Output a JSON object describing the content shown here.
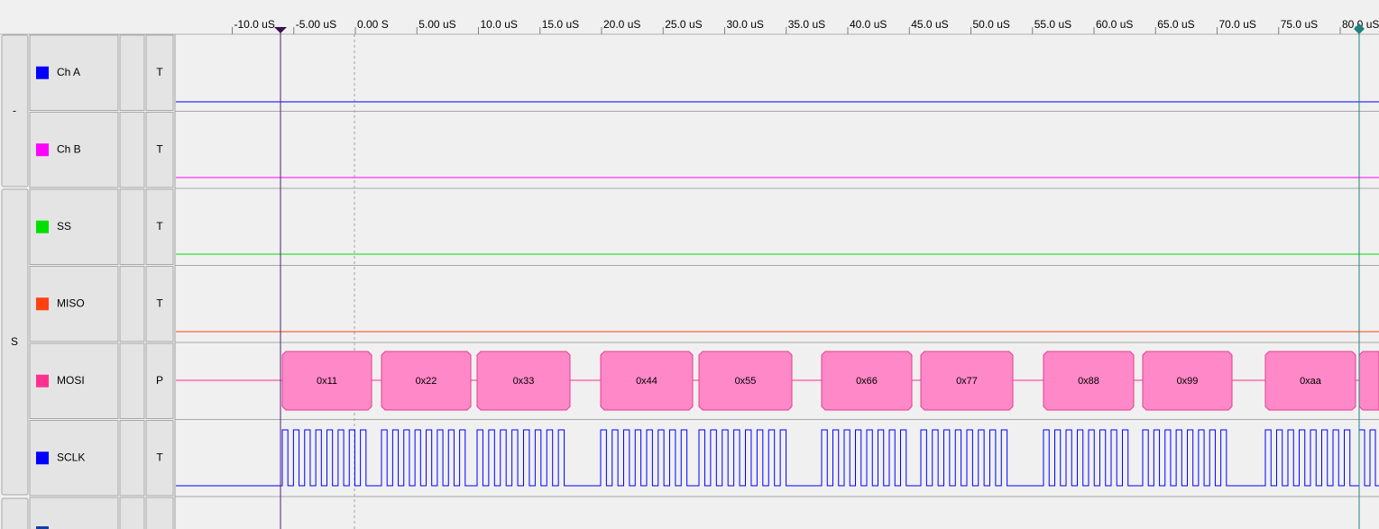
{
  "time_ruler": {
    "ticks": [
      {
        "value": -10,
        "label": "-10.0 uS"
      },
      {
        "value": -5,
        "label": "-5.00 uS"
      },
      {
        "value": 0,
        "label": "0.00  S"
      },
      {
        "value": 5,
        "label": "5.00 uS"
      },
      {
        "value": 10,
        "label": "10.0 uS"
      },
      {
        "value": 15,
        "label": "15.0 uS"
      },
      {
        "value": 20,
        "label": "20.0 uS"
      },
      {
        "value": 25,
        "label": "25.0 uS"
      },
      {
        "value": 30,
        "label": "30.0 uS"
      },
      {
        "value": 35,
        "label": "35.0 uS"
      },
      {
        "value": 40,
        "label": "40.0 uS"
      },
      {
        "value": 45,
        "label": "45.0 uS"
      },
      {
        "value": 50,
        "label": "50.0 uS"
      },
      {
        "value": 55,
        "label": "55.0 uS"
      },
      {
        "value": 60,
        "label": "60.0 uS"
      },
      {
        "value": 65,
        "label": "65.0 uS"
      },
      {
        "value": 70,
        "label": "70.0 uS"
      },
      {
        "value": 75,
        "label": "75.0 uS"
      },
      {
        "value": 80,
        "label": "80.0 uS"
      }
    ]
  },
  "groups": [
    {
      "label": "-"
    },
    {
      "label": "S"
    }
  ],
  "channels": [
    {
      "name": "Ch A",
      "color": "#0000ff",
      "mode": "T"
    },
    {
      "name": "Ch B",
      "color": "#ff00ff",
      "mode": "T"
    },
    {
      "name": "SS",
      "color": "#00e000",
      "mode": "T"
    },
    {
      "name": "MISO",
      "color": "#ff4010",
      "mode": "T"
    },
    {
      "name": "MOSI",
      "color": "#ff3090",
      "mode": "P"
    },
    {
      "name": "SCLK",
      "color": "#0000ff",
      "mode": "T"
    }
  ],
  "decoded": {
    "frames": [
      "0x11",
      "0x22",
      "0x33",
      "0x44",
      "0x55",
      "0x66",
      "0x77",
      "0x88",
      "0x99",
      "0xaa"
    ]
  }
}
